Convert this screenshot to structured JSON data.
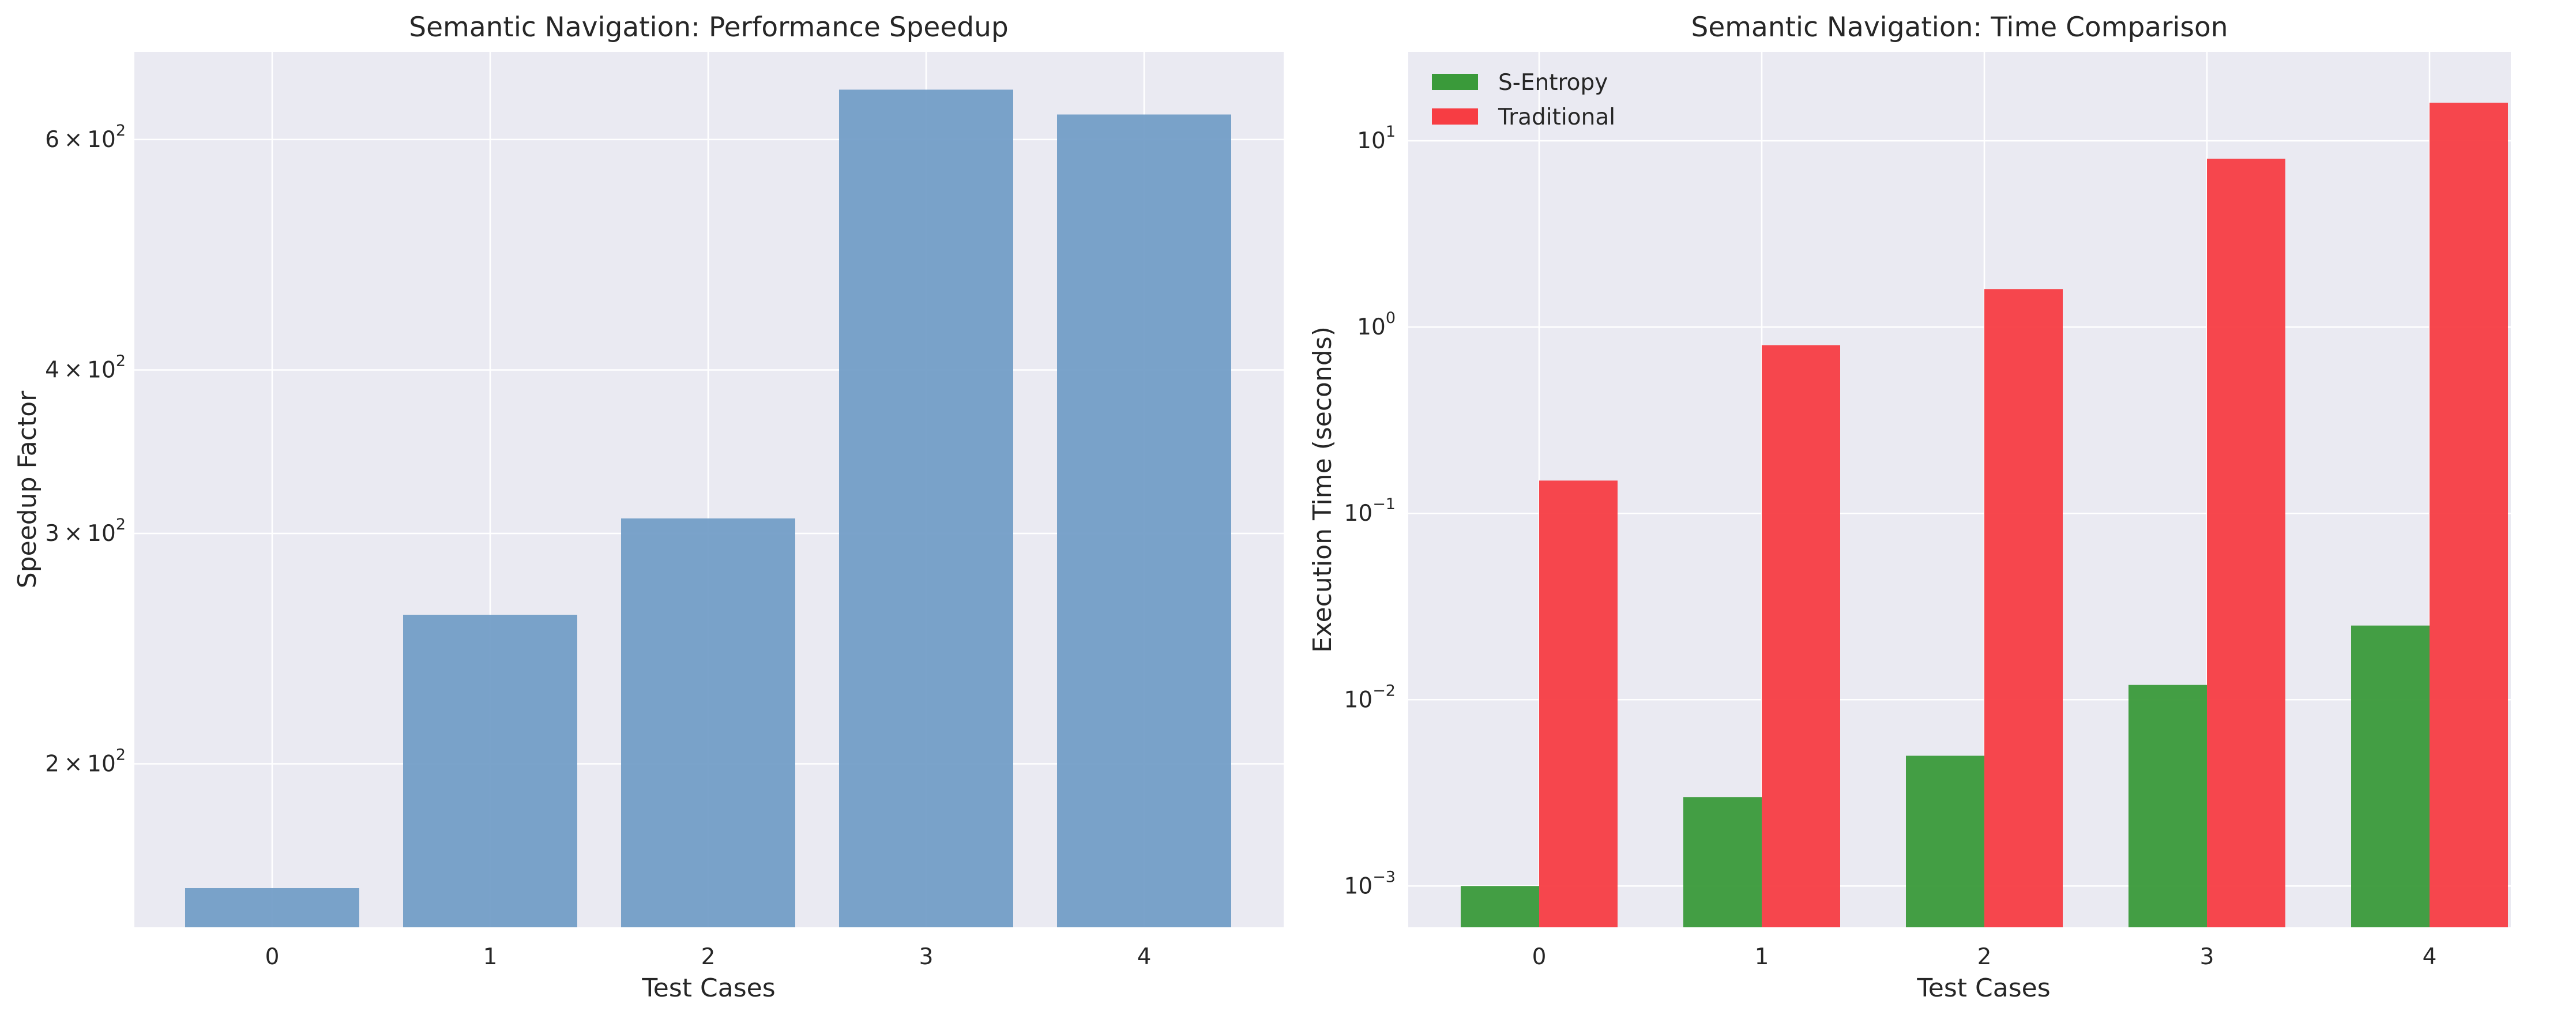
{
  "chart_data": [
    {
      "type": "bar",
      "title": "Semantic Navigation: Performance Speedup",
      "xlabel": "Test Cases",
      "ylabel": "Speedup Factor",
      "yscale": "log",
      "ylim": [
        150,
        700
      ],
      "categories": [
        "0",
        "1",
        "2",
        "3",
        "4"
      ],
      "values": [
        150,
        260,
        308,
        655,
        627
      ],
      "yticks": [
        {
          "value": 200,
          "mantissa": "2",
          "times": "×",
          "base": "10",
          "exp": "2"
        },
        {
          "value": 300,
          "mantissa": "3",
          "times": "×",
          "base": "10",
          "exp": "2"
        },
        {
          "value": 400,
          "mantissa": "4",
          "times": "×",
          "base": "10",
          "exp": "2"
        },
        {
          "value": 600,
          "mantissa": "6",
          "times": "×",
          "base": "10",
          "exp": "2"
        }
      ],
      "color": "#6f9bc6",
      "grid": true
    },
    {
      "type": "bar",
      "title": "Semantic Navigation: Time Comparison",
      "xlabel": "Test Cases",
      "ylabel": "Execution Time (seconds)",
      "yscale": "log",
      "ylim": [
        0.0006,
        30
      ],
      "categories": [
        "0",
        "1",
        "2",
        "3",
        "4"
      ],
      "series": [
        {
          "name": "S-Entropy",
          "color": "#3a9a3a",
          "values": [
            0.001,
            0.003,
            0.005,
            0.012,
            0.025
          ]
        },
        {
          "name": "Traditional",
          "color": "#f73d43",
          "values": [
            0.15,
            0.8,
            1.6,
            8.0,
            16.0
          ]
        }
      ],
      "yticks": [
        {
          "value": 0.001,
          "base": "10",
          "exp": "−3"
        },
        {
          "value": 0.01,
          "base": "10",
          "exp": "−2"
        },
        {
          "value": 0.1,
          "base": "10",
          "exp": "−1"
        },
        {
          "value": 1,
          "base": "10",
          "exp": "0"
        },
        {
          "value": 10,
          "base": "10",
          "exp": "1"
        }
      ],
      "legend": "top-left",
      "grid": true
    }
  ]
}
